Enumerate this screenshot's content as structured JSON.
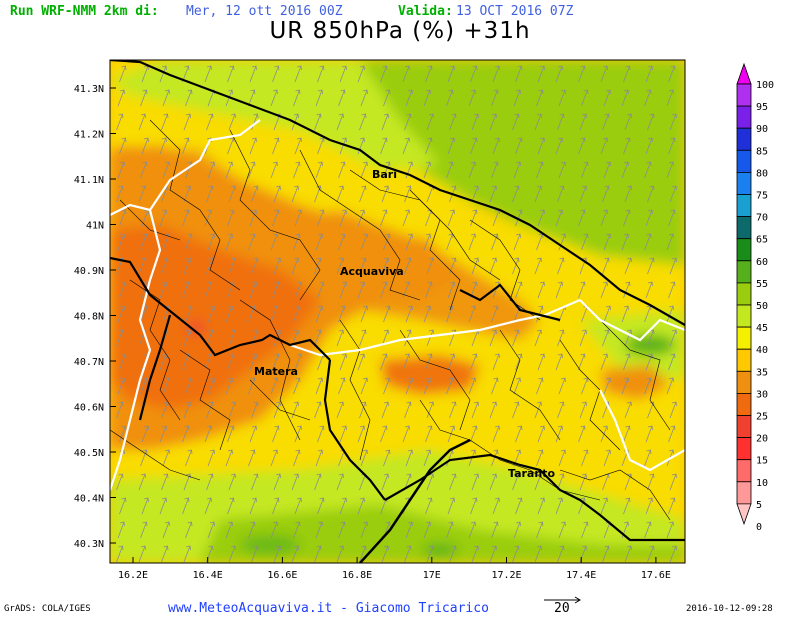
{
  "header": {
    "run_label": "Run WRF-NMM 2km di:",
    "run_date": "Mer, 12 ott 2016 00Z",
    "valid_label": "Valida:",
    "valid_date": "13 OCT 2016 07Z",
    "title": "UR 850hPa (%) +31h"
  },
  "axes": {
    "y_labels": [
      "41.3N",
      "41.2N",
      "41.1N",
      "41N",
      "40.9N",
      "40.8N",
      "40.7N",
      "40.6N",
      "40.5N",
      "40.4N",
      "40.3N"
    ],
    "x_labels": [
      "16.2E",
      "16.4E",
      "16.6E",
      "16.8E",
      "17E",
      "17.2E",
      "17.4E",
      "17.6E"
    ]
  },
  "cities": [
    "Bari",
    "Acquaviva",
    "Matera",
    "Taranto"
  ],
  "colorbar": {
    "labels": [
      "100",
      "95",
      "90",
      "85",
      "80",
      "75",
      "70",
      "65",
      "60",
      "55",
      "50",
      "45",
      "40",
      "35",
      "30",
      "25",
      "20",
      "15",
      "10",
      "5",
      "0"
    ],
    "colors": [
      "#ee00ee",
      "#b030f0",
      "#7a20e8",
      "#1f30d8",
      "#1658ea",
      "#1a80f0",
      "#1aa0d0",
      "#0c6a6a",
      "#1a8c1a",
      "#56b01c",
      "#9acd10",
      "#c4e820",
      "#f4f000",
      "#ffc800",
      "#f09010",
      "#f06a10",
      "#f04030",
      "#ff3030",
      "#ff6a6a",
      "#ff9898",
      "#ffc4c4"
    ]
  },
  "footer": {
    "grads": "GrADS: COLA/IGES",
    "site": "www.MeteoAcquaviva.it - Giacomo Tricarico",
    "vector_ref": "20",
    "timestamp": "2016-10-12-09:28"
  }
}
